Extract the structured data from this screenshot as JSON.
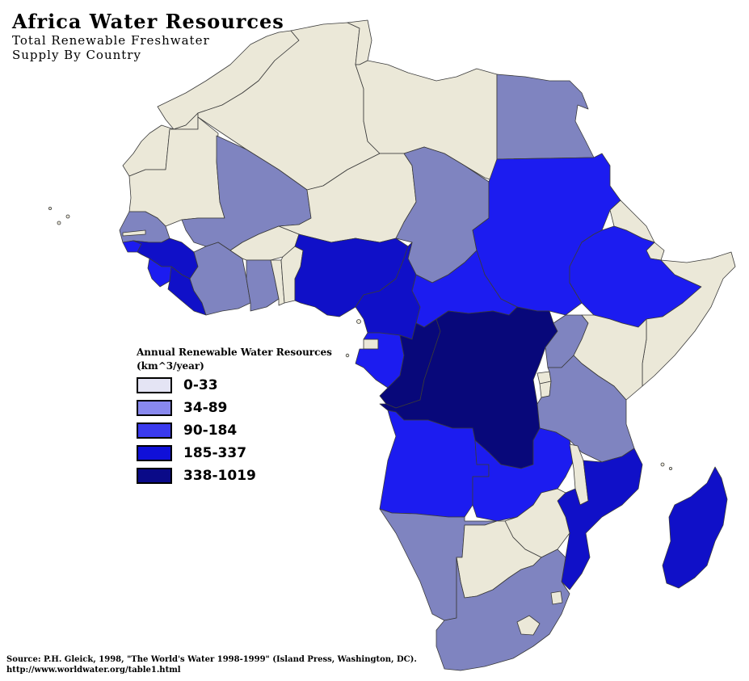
{
  "title": "Africa Water Resources",
  "subtitle_line1": "Total Renewable Freshwater",
  "subtitle_line2": "Supply By Country",
  "legend": {
    "title_line1": "Annual Renewable Water Resources",
    "title_line2": "(km^3/year)",
    "items": [
      {
        "label": "0-33",
        "color": "#e4e4f4"
      },
      {
        "label": "34-89",
        "color": "#8888ee"
      },
      {
        "label": "90-184",
        "color": "#3a3aee"
      },
      {
        "label": "185-337",
        "color": "#1010d8"
      },
      {
        "label": "338-1019",
        "color": "#0a0a88"
      }
    ]
  },
  "map_colors": {
    "pale": "#ebe8d8",
    "muted": "#7f84c0",
    "bright": "#1c1cf0",
    "medium": "#1010c8",
    "dark": "#08087a",
    "ocean": "#ffffff",
    "border": "#3a3a3a"
  },
  "source_line1": "Source: P.H. Gleick, 1998, \"The World's Water 1998-1999\" (Island Press, Washington, DC).",
  "source_line2": "http://www.worldwater.org/table1.html"
}
